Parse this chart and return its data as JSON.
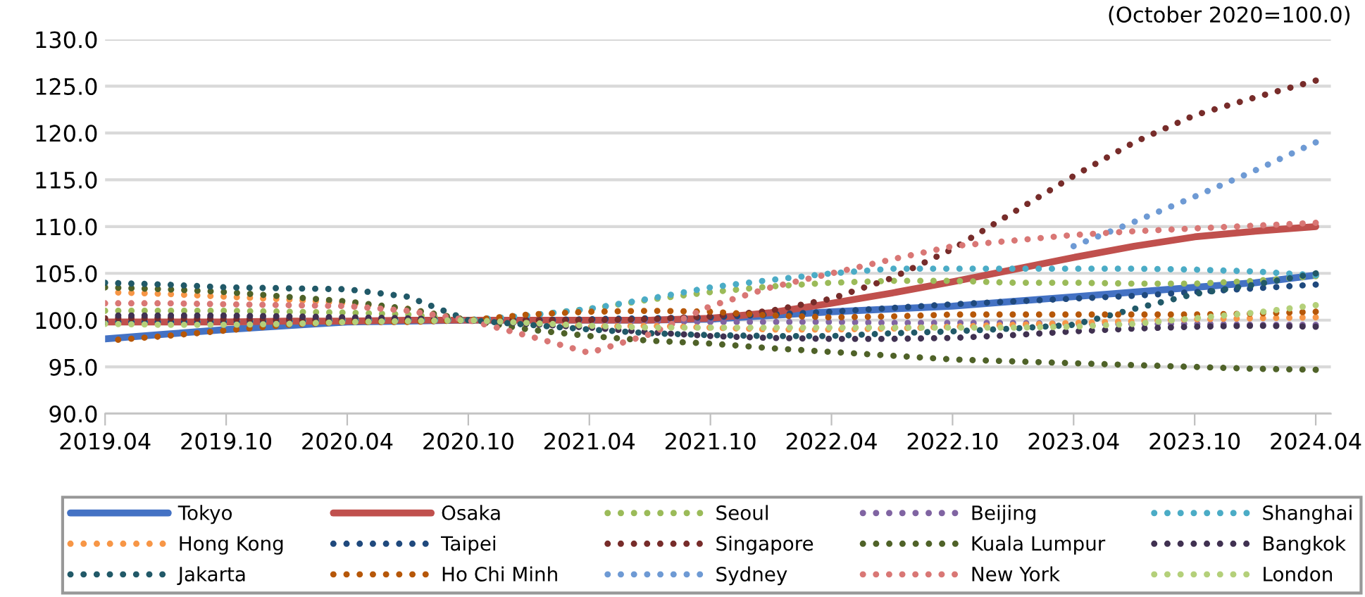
{
  "chart_data": {
    "type": "line",
    "categories": [
      "2019.04",
      null,
      "2019.10",
      null,
      "2020.04",
      null,
      "2020.10",
      null,
      "2021.04",
      null,
      "2021.10",
      null,
      "2022.04",
      null,
      "2022.10",
      null,
      "2023.04",
      null,
      "2023.10",
      null,
      "2024.04"
    ],
    "ylim": [
      90,
      130
    ],
    "yticks": [
      {
        "value": 90,
        "label": "90.0"
      },
      {
        "value": 95,
        "label": "95.0"
      },
      {
        "value": 100,
        "label": "100.0"
      },
      {
        "value": 105,
        "label": "105.0"
      },
      {
        "value": 110,
        "label": "110.0"
      },
      {
        "value": 115,
        "label": "115.0"
      },
      {
        "value": 120,
        "label": "120.0"
      },
      {
        "value": 125,
        "label": "125.0"
      },
      {
        "value": 130,
        "label": "130.0"
      }
    ],
    "grid": "y",
    "legend": "bottom",
    "marker": "none",
    "annotations": [
      "(October 2020=100.0)"
    ],
    "series": [
      {
        "name": "Tokyo",
        "color": "#4472c4",
        "line_style": "solid",
        "values": [
          98.0,
          98.5,
          99.0,
          99.4,
          99.8,
          99.9,
          100.0,
          100.0,
          100.0,
          100.0,
          100.1,
          100.5,
          100.9,
          101.2,
          101.5,
          102.0,
          102.5,
          103.0,
          103.5,
          104.0,
          104.8
        ]
      },
      {
        "name": "Osaka",
        "color": "#c0504d",
        "line_style": "solid",
        "values": [
          99.8,
          99.8,
          99.8,
          99.9,
          99.9,
          100.0,
          100.0,
          100.0,
          100.0,
          100.0,
          100.2,
          100.8,
          101.8,
          102.9,
          104.1,
          105.4,
          106.7,
          107.9,
          108.9,
          109.5,
          110.0
        ]
      },
      {
        "name": "Seoul",
        "color": "#9bbb59",
        "line_style": "dotted",
        "values": [
          101.0,
          101.0,
          101.0,
          100.9,
          100.8,
          100.6,
          100.0,
          100.5,
          101.2,
          102.2,
          103.0,
          103.6,
          104.0,
          104.2,
          104.2,
          104.0,
          104.0,
          103.9,
          103.9,
          104.2,
          104.7
        ]
      },
      {
        "name": "Beijing",
        "color": "#8064a2",
        "line_style": "dotted",
        "values": [
          100.3,
          100.3,
          100.3,
          100.2,
          100.1,
          100.0,
          100.0,
          100.0,
          99.9,
          99.9,
          99.8,
          99.8,
          99.8,
          99.7,
          99.7,
          99.7,
          99.6,
          99.6,
          99.6,
          99.5,
          99.5
        ]
      },
      {
        "name": "Shanghai",
        "color": "#4bacc6",
        "line_style": "dotted",
        "values": [
          99.8,
          99.8,
          99.9,
          99.9,
          100.0,
          100.0,
          100.0,
          100.5,
          101.2,
          102.3,
          103.5,
          104.3,
          105.0,
          105.5,
          105.5,
          105.5,
          105.5,
          105.5,
          105.4,
          105.2,
          104.8
        ]
      },
      {
        "name": "Hong Kong",
        "color": "#f79646",
        "line_style": "dotted",
        "values": [
          103.0,
          102.8,
          102.5,
          102.2,
          101.8,
          101.2,
          100.0,
          99.6,
          99.3,
          99.4,
          99.2,
          99.0,
          99.0,
          99.1,
          99.3,
          99.5,
          99.7,
          99.9,
          100.1,
          100.2,
          100.3
        ]
      },
      {
        "name": "Taipei",
        "color": "#1f497d",
        "line_style": "dotted",
        "values": [
          99.8,
          99.8,
          99.8,
          99.9,
          99.9,
          100.0,
          100.0,
          100.0,
          100.1,
          100.2,
          100.3,
          100.6,
          100.9,
          101.3,
          101.7,
          102.0,
          102.3,
          102.6,
          103.0,
          103.4,
          103.8
        ]
      },
      {
        "name": "Singapore",
        "color": "#772c2a",
        "line_style": "dotted",
        "values": [
          100.2,
          100.2,
          100.1,
          100.1,
          100.0,
          100.0,
          100.0,
          100.0,
          100.0,
          100.1,
          100.4,
          101.0,
          102.3,
          104.5,
          107.6,
          111.5,
          115.4,
          119.0,
          121.9,
          123.8,
          125.6
        ]
      },
      {
        "name": "Kuala Lumpur",
        "color": "#4f6228",
        "line_style": "dotted",
        "values": [
          103.5,
          103.3,
          103.0,
          102.5,
          102.0,
          101.2,
          100.0,
          99.0,
          98.3,
          97.8,
          97.5,
          97.0,
          96.6,
          96.2,
          95.8,
          95.6,
          95.4,
          95.2,
          95.0,
          94.8,
          94.7
        ]
      },
      {
        "name": "Bangkok",
        "color": "#403151",
        "line_style": "dotted",
        "values": [
          100.5,
          100.5,
          100.5,
          100.4,
          100.3,
          100.2,
          100.0,
          99.6,
          99.2,
          98.7,
          98.3,
          98.1,
          98.0,
          98.0,
          98.1,
          98.4,
          98.8,
          99.1,
          99.3,
          99.4,
          99.3
        ]
      },
      {
        "name": "Jakarta",
        "color": "#215968",
        "line_style": "dotted",
        "values": [
          104.0,
          103.8,
          103.5,
          103.4,
          103.3,
          102.5,
          100.0,
          99.5,
          99.0,
          98.6,
          98.4,
          98.3,
          98.3,
          98.6,
          98.8,
          99.1,
          99.5,
          101.2,
          102.8,
          103.8,
          105.0
        ]
      },
      {
        "name": "Ho Chi Minh",
        "color": "#b65708",
        "line_style": "dotted",
        "values": [
          97.8,
          98.3,
          98.9,
          99.5,
          99.8,
          99.8,
          100.0,
          100.6,
          100.9,
          101.0,
          100.9,
          100.5,
          100.3,
          100.4,
          100.6,
          100.6,
          100.6,
          100.6,
          100.6,
          100.7,
          100.9
        ]
      },
      {
        "name": "Sydney",
        "color": "#6e9ad4",
        "line_style": "dotted",
        "values": [
          null,
          null,
          null,
          null,
          null,
          null,
          null,
          null,
          null,
          null,
          null,
          null,
          null,
          null,
          null,
          null,
          107.9,
          110.5,
          113.2,
          116.0,
          119.0
        ]
      },
      {
        "name": "New York",
        "color": "#d97775",
        "line_style": "dotted",
        "values": [
          101.8,
          101.8,
          101.7,
          101.6,
          101.5,
          101.0,
          100.0,
          98.3,
          96.5,
          98.5,
          101.5,
          103.5,
          105.0,
          106.5,
          107.9,
          108.5,
          109.1,
          109.5,
          109.8,
          110.1,
          110.4
        ]
      },
      {
        "name": "London",
        "color": "#b4d07a",
        "line_style": "dotted",
        "values": [
          99.6,
          99.5,
          99.5,
          99.6,
          99.8,
          99.9,
          100.0,
          99.7,
          99.4,
          99.2,
          99.2,
          99.2,
          99.2,
          99.2,
          99.2,
          99.2,
          99.3,
          99.6,
          100.2,
          100.8,
          101.6
        ]
      }
    ]
  }
}
